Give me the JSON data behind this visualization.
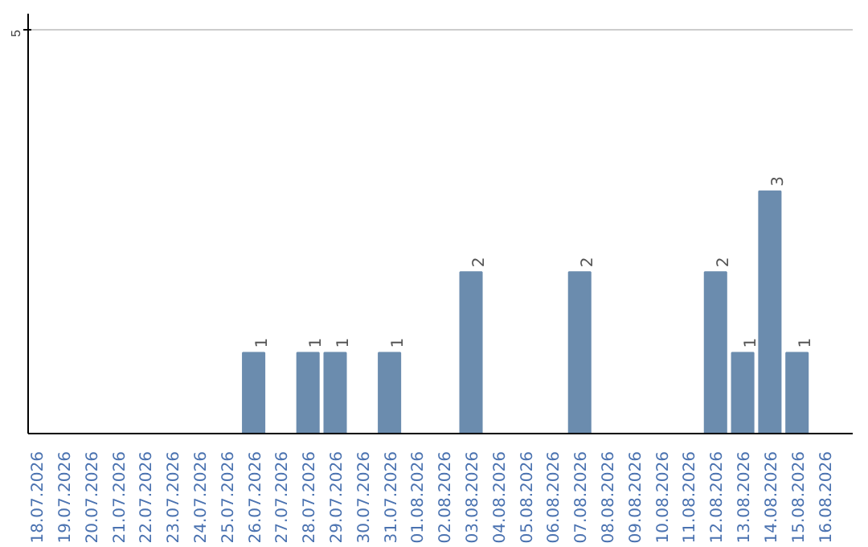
{
  "chart_data": {
    "type": "bar",
    "categories": [
      "18.07.2026",
      "19.07.2026",
      "20.07.2026",
      "21.07.2026",
      "22.07.2026",
      "23.07.2026",
      "24.07.2026",
      "25.07.2026",
      "26.07.2026",
      "27.07.2026",
      "28.07.2026",
      "29.07.2026",
      "30.07.2026",
      "31.07.2026",
      "01.08.2026",
      "02.08.2026",
      "03.08.2026",
      "04.08.2026",
      "05.08.2026",
      "06.08.2026",
      "07.08.2026",
      "08.08.2026",
      "09.08.2026",
      "10.08.2026",
      "11.08.2026",
      "12.08.2026",
      "13.08.2026",
      "14.08.2026",
      "15.08.2026",
      "16.08.2026"
    ],
    "values": [
      0,
      0,
      0,
      0,
      0,
      0,
      0,
      0,
      1,
      0,
      1,
      1,
      0,
      1,
      0,
      0,
      2,
      0,
      0,
      0,
      2,
      0,
      0,
      0,
      0,
      2,
      1,
      3,
      1,
      0
    ],
    "value_labels": [
      null,
      null,
      null,
      null,
      null,
      null,
      null,
      null,
      "1",
      null,
      "1",
      "1",
      null,
      "1",
      null,
      null,
      "2",
      null,
      null,
      null,
      "2",
      null,
      null,
      null,
      null,
      "2",
      "1",
      "3",
      "1",
      null
    ],
    "color": "#6b8cae",
    "ylim": [
      0,
      5.2
    ],
    "yticks": [
      5
    ],
    "grid": "y"
  }
}
